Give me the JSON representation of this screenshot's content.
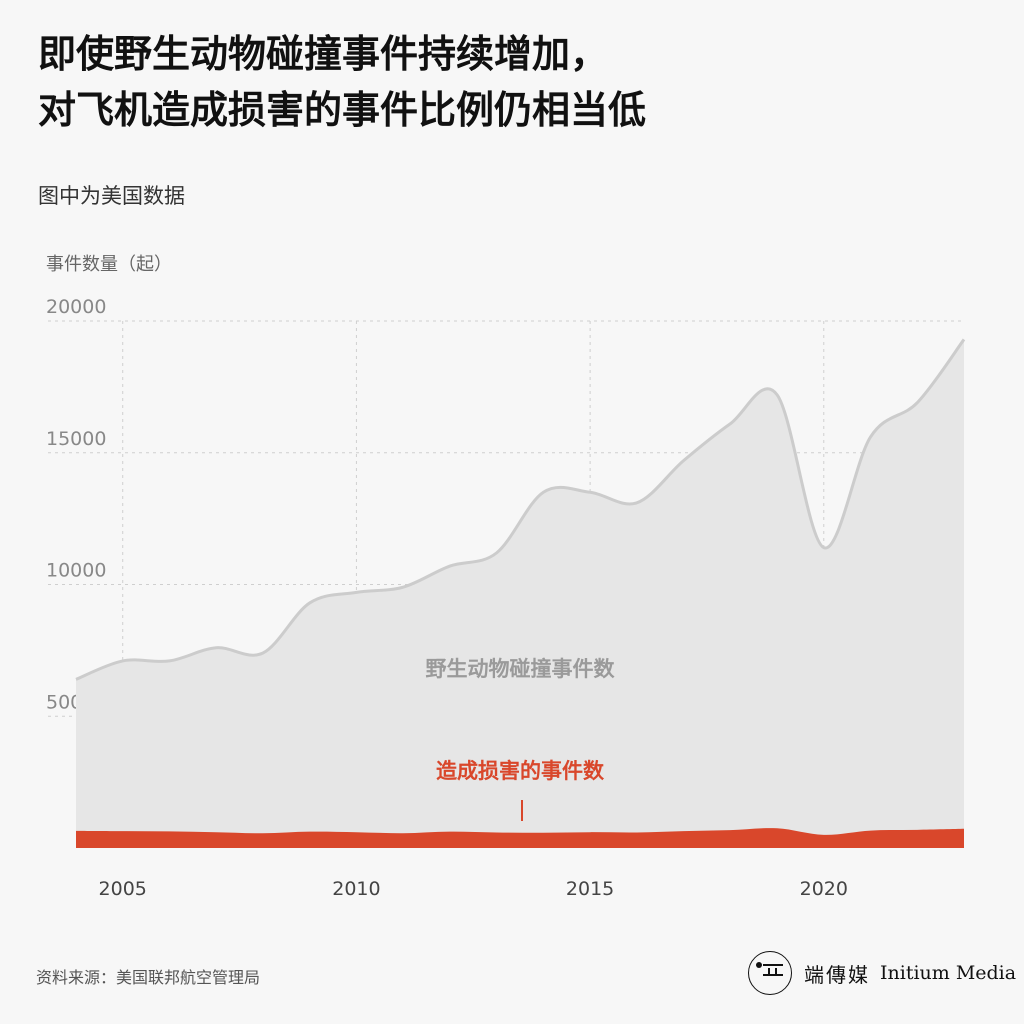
{
  "title_lines": [
    "即使野生动物碰撞事件持续增加，",
    "对飞机造成损害的事件比例仍相当低"
  ],
  "subtitle": "图中为美国数据",
  "source": "资料来源：美国联邦航空管理局",
  "brand": {
    "cn": "端傳媒",
    "en": "Initium Media"
  },
  "colors": {
    "total": "#e6e6e6",
    "total_line": "#cccccc",
    "damage": "#d9472b",
    "damage_label": "#d9472b",
    "total_label": "#9a9a9a",
    "grid": "#cfcfcf"
  },
  "chart_data": {
    "type": "area",
    "ylabel": "事件数量（起）",
    "ylim": [
      0,
      20000
    ],
    "yticks": [
      5000,
      10000,
      15000,
      20000
    ],
    "xlim": [
      2004,
      2023
    ],
    "xticks": [
      2005,
      2010,
      2015,
      2020
    ],
    "x": [
      2004,
      2005,
      2006,
      2007,
      2008,
      2009,
      2010,
      2011,
      2012,
      2013,
      2014,
      2015,
      2016,
      2017,
      2018,
      2019,
      2020,
      2021,
      2022,
      2023
    ],
    "series": [
      {
        "name": "野生动物碰撞事件数",
        "values": [
          6400,
          7100,
          7100,
          7600,
          7400,
          9300,
          9700,
          9900,
          10700,
          11200,
          13500,
          13500,
          13100,
          14700,
          16100,
          17200,
          11400,
          15600,
          16900,
          19300
        ]
      },
      {
        "name": "造成损害的事件数",
        "values": [
          650,
          640,
          630,
          600,
          560,
          620,
          600,
          560,
          620,
          590,
          580,
          600,
          590,
          640,
          680,
          750,
          500,
          660,
          690,
          730
        ]
      }
    ]
  }
}
